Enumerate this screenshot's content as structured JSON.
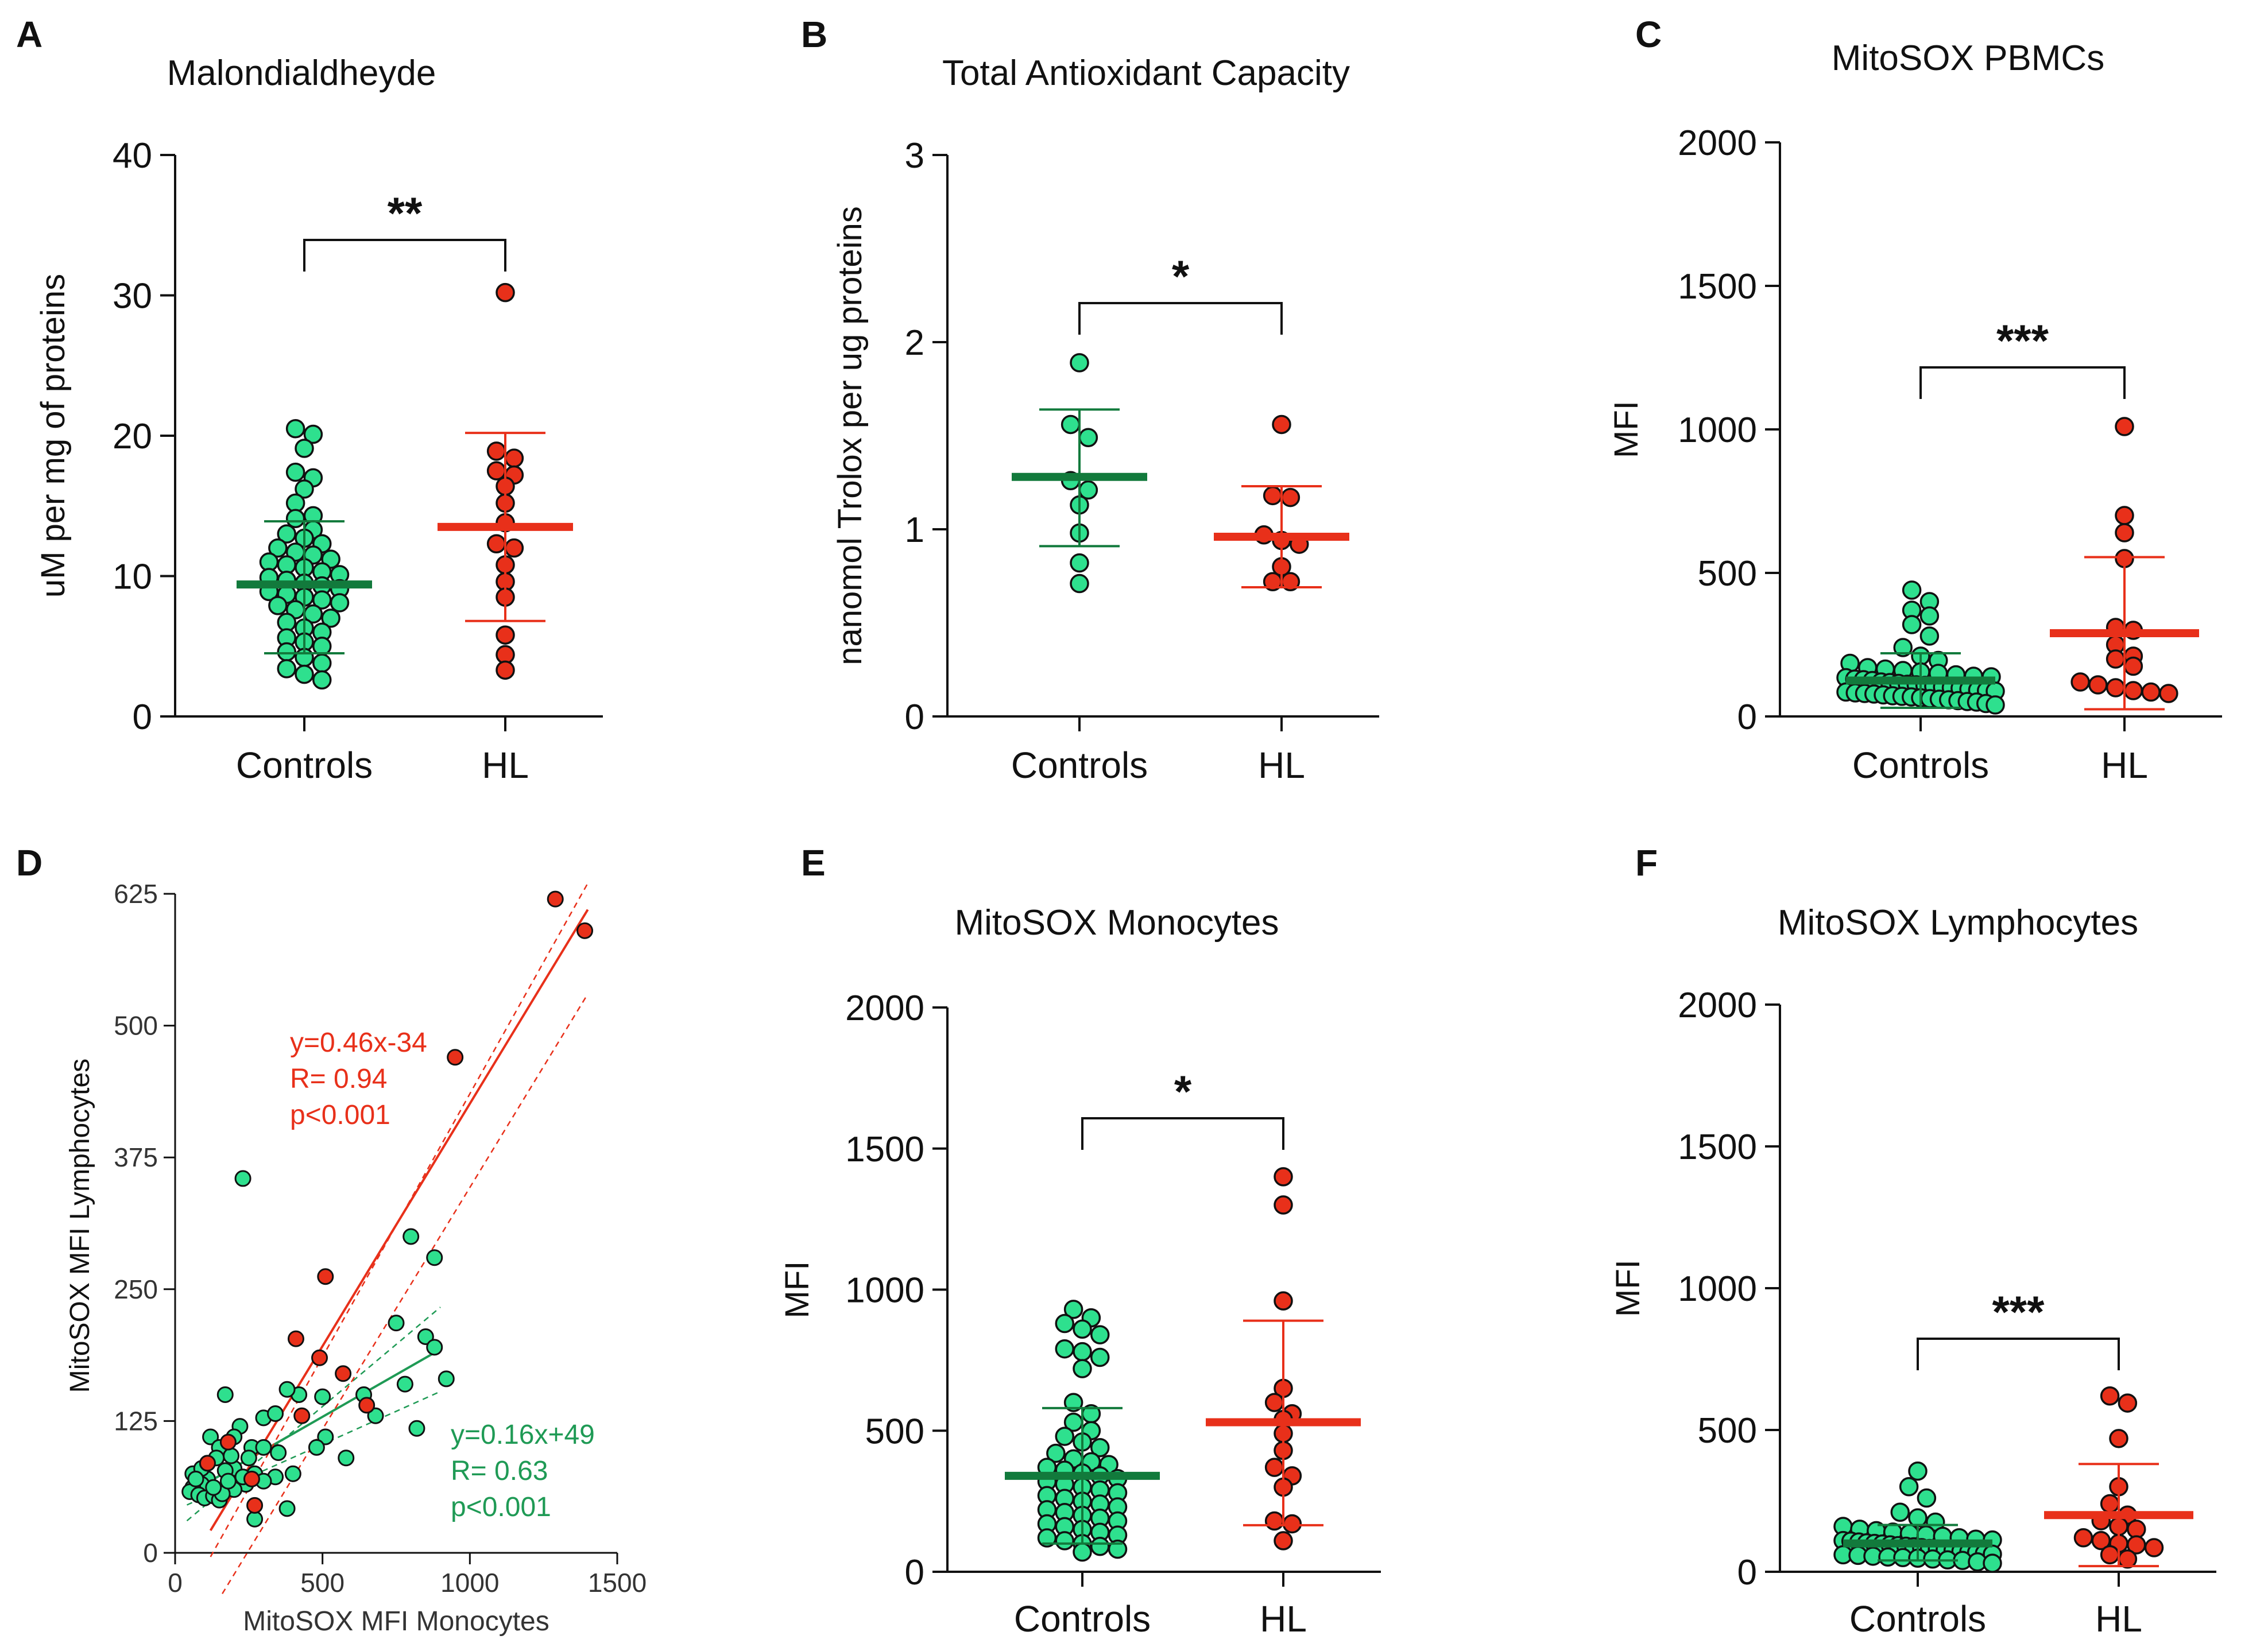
{
  "colors": {
    "controls_fill": "#2EE08E",
    "controls_line": "#127A3C",
    "hl_fill": "#E8301A",
    "hl_line": "#E8301A",
    "axis": "#111111",
    "green_text": "#1F9A55",
    "red_text": "#E8301A"
  },
  "chart_data": [
    {
      "panel": "A",
      "type": "scatter",
      "title": "Malondialdheyde",
      "xlabel": "",
      "ylabel": "uM per mg of proteins",
      "ylim": [
        0,
        40
      ],
      "yticks": [
        0,
        10,
        20,
        30,
        40
      ],
      "categories": [
        "Controls",
        "HL"
      ],
      "significance": "**",
      "series": [
        {
          "name": "Controls",
          "mean": 9.4,
          "sd_low": 4.5,
          "sd_high": 13.9,
          "values": [
            20.5,
            20.1,
            19.1,
            17.4,
            17.0,
            16.2,
            15.2,
            14.3,
            14.1,
            13.3,
            13.0,
            12.7,
            12.3,
            12.0,
            11.7,
            11.5,
            11.2,
            11.0,
            10.8,
            10.6,
            10.3,
            10.1,
            9.9,
            9.7,
            9.5,
            9.3,
            9.1,
            8.9,
            8.7,
            8.5,
            8.3,
            8.1,
            7.9,
            7.6,
            7.3,
            7.0,
            6.7,
            6.3,
            6.0,
            5.6,
            5.3,
            5.0,
            4.6,
            4.2,
            3.8,
            3.4,
            3.0,
            2.6
          ]
        },
        {
          "name": "HL",
          "mean": 13.5,
          "sd_low": 6.8,
          "sd_high": 20.2,
          "values": [
            30.2,
            18.9,
            18.4,
            17.5,
            17.2,
            16.4,
            15.2,
            13.8,
            12.3,
            12.0,
            10.8,
            9.6,
            8.5,
            5.8,
            4.4,
            3.3
          ]
        }
      ]
    },
    {
      "panel": "B",
      "type": "scatter",
      "title": "Total Antioxidant Capacity",
      "xlabel": "",
      "ylabel": "nanomol Trolox per ug proteins",
      "ylim": [
        0,
        3
      ],
      "yticks": [
        0,
        1,
        2,
        3
      ],
      "categories": [
        "Controls",
        "HL"
      ],
      "significance": "*",
      "series": [
        {
          "name": "Controls",
          "mean": 1.28,
          "sd_low": 0.91,
          "sd_high": 1.64,
          "values": [
            1.89,
            1.56,
            1.49,
            1.26,
            1.21,
            1.13,
            0.98,
            0.82,
            0.71
          ]
        },
        {
          "name": "HL",
          "mean": 0.96,
          "sd_low": 0.69,
          "sd_high": 1.23,
          "values": [
            1.56,
            1.18,
            1.17,
            0.97,
            0.94,
            0.92,
            0.8,
            0.72,
            0.72
          ]
        }
      ]
    },
    {
      "panel": "C",
      "type": "scatter",
      "title": "MitoSOX PBMCs",
      "xlabel": "",
      "ylabel": "MFI",
      "ylim": [
        0,
        2000
      ],
      "yticks": [
        0,
        500,
        1000,
        1500,
        2000
      ],
      "categories": [
        "Controls",
        "HL"
      ],
      "significance": "***",
      "series": [
        {
          "name": "Controls",
          "mean": 125,
          "sd_low": 30,
          "sd_high": 220,
          "values": [
            440,
            400,
            370,
            350,
            320,
            280,
            240,
            210,
            195,
            185,
            170,
            165,
            160,
            155,
            150,
            145,
            140,
            138,
            135,
            130,
            128,
            125,
            120,
            118,
            115,
            112,
            110,
            108,
            105,
            102,
            100,
            98,
            95,
            92,
            90,
            88,
            85,
            82,
            80,
            78,
            75,
            72,
            70,
            68,
            65,
            62,
            60,
            58,
            55,
            52,
            50,
            45,
            40
          ]
        },
        {
          "name": "HL",
          "mean": 290,
          "sd_low": 25,
          "sd_high": 555,
          "values": [
            1010,
            700,
            640,
            550,
            310,
            300,
            250,
            210,
            200,
            175,
            120,
            110,
            100,
            90,
            85,
            80
          ]
        }
      ]
    },
    {
      "panel": "D",
      "type": "scatter",
      "title": "",
      "xlabel": "MitoSOX MFI Monocytes",
      "ylabel": "MitoSOX MFI Lymphocytes",
      "xlim": [
        0,
        1500
      ],
      "ylim": [
        0,
        625
      ],
      "xticks": [
        0,
        500,
        1000,
        1500
      ],
      "yticks": [
        0,
        125,
        250,
        375,
        500,
        625
      ],
      "series": [
        {
          "name": "Controls",
          "fit_label": "y=0.16x+49",
          "r_label": "R= 0.63",
          "p_label": "p<0.001",
          "fit": {
            "slope": 0.16,
            "intercept": 49,
            "x_range": [
              40,
              900
            ]
          },
          "points": [
            [
              230,
              355
            ],
            [
              800,
              300
            ],
            [
              880,
              280
            ],
            [
              750,
              218
            ],
            [
              850,
              205
            ],
            [
              880,
              195
            ],
            [
              640,
              150
            ],
            [
              420,
              150
            ],
            [
              170,
              150
            ],
            [
              920,
              165
            ],
            [
              780,
              160
            ],
            [
              500,
              148
            ],
            [
              380,
              155
            ],
            [
              680,
              130
            ],
            [
              300,
              128
            ],
            [
              340,
              132
            ],
            [
              220,
              120
            ],
            [
              510,
              110
            ],
            [
              480,
              100
            ],
            [
              820,
              118
            ],
            [
              260,
              100
            ],
            [
              200,
              110
            ],
            [
              120,
              110
            ],
            [
              150,
              100
            ],
            [
              300,
              100
            ],
            [
              400,
              75
            ],
            [
              340,
              72
            ],
            [
              200,
              80
            ],
            [
              170,
              78
            ],
            [
              110,
              70
            ],
            [
              90,
              65
            ],
            [
              60,
              62
            ],
            [
              50,
              58
            ],
            [
              80,
              55
            ],
            [
              100,
              52
            ],
            [
              130,
              54
            ],
            [
              150,
              50
            ],
            [
              60,
              75
            ],
            [
              90,
              80
            ],
            [
              110,
              85
            ],
            [
              140,
              90
            ],
            [
              190,
              92
            ],
            [
              250,
              90
            ],
            [
              350,
              95
            ],
            [
              580,
              90
            ],
            [
              270,
              75
            ],
            [
              300,
              68
            ],
            [
              240,
              65
            ],
            [
              200,
              60
            ],
            [
              160,
              56
            ],
            [
              380,
              42
            ],
            [
              270,
              32
            ],
            [
              130,
              62
            ],
            [
              70,
              70
            ],
            [
              180,
              68
            ],
            [
              230,
              72
            ]
          ]
        },
        {
          "name": "HL",
          "fit_label": "y=0.46x-34",
          "r_label": "R= 0.94",
          "p_label": "p<0.001",
          "fit": {
            "slope": 0.46,
            "intercept": -34,
            "x_range": [
              120,
              1400
            ]
          },
          "points": [
            [
              1290,
              620
            ],
            [
              1390,
              590
            ],
            [
              950,
              470
            ],
            [
              510,
              262
            ],
            [
              410,
              203
            ],
            [
              490,
              185
            ],
            [
              650,
              140
            ],
            [
              570,
              170
            ],
            [
              430,
              130
            ],
            [
              180,
              105
            ],
            [
              110,
              85
            ],
            [
              270,
              45
            ],
            [
              260,
              70
            ]
          ]
        }
      ]
    },
    {
      "panel": "E",
      "type": "scatter",
      "title": "MitoSOX Monocytes",
      "xlabel": "",
      "ylabel": "MFI",
      "ylim": [
        0,
        2000
      ],
      "yticks": [
        0,
        500,
        1000,
        1500,
        2000
      ],
      "categories": [
        "Controls",
        "HL"
      ],
      "significance": "*",
      "series": [
        {
          "name": "Controls",
          "mean": 340,
          "sd_low": 100,
          "sd_high": 580,
          "values": [
            930,
            900,
            880,
            860,
            840,
            790,
            780,
            760,
            720,
            600,
            560,
            530,
            500,
            480,
            460,
            440,
            420,
            400,
            390,
            380,
            370,
            360,
            350,
            340,
            330,
            320,
            310,
            300,
            290,
            280,
            270,
            260,
            250,
            240,
            230,
            220,
            210,
            200,
            190,
            180,
            170,
            160,
            150,
            140,
            130,
            120,
            110,
            100,
            90,
            80,
            70
          ]
        },
        {
          "name": "HL",
          "mean": 530,
          "sd_low": 165,
          "sd_high": 890,
          "values": [
            1400,
            1300,
            960,
            650,
            600,
            560,
            540,
            490,
            430,
            370,
            340,
            300,
            180,
            170,
            110
          ]
        }
      ]
    },
    {
      "panel": "F",
      "type": "scatter",
      "title": "MitoSOX Lymphocytes",
      "xlabel": "",
      "ylabel": "MFI",
      "ylim": [
        0,
        2000
      ],
      "yticks": [
        0,
        500,
        1000,
        1500,
        2000
      ],
      "categories": [
        "Controls",
        "HL"
      ],
      "significance": "***",
      "series": [
        {
          "name": "Controls",
          "mean": 100,
          "sd_low": 40,
          "sd_high": 165,
          "values": [
            355,
            300,
            260,
            210,
            190,
            175,
            160,
            150,
            145,
            140,
            135,
            130,
            125,
            120,
            115,
            112,
            110,
            108,
            105,
            102,
            100,
            98,
            95,
            92,
            90,
            88,
            85,
            82,
            80,
            78,
            75,
            72,
            70,
            68,
            65,
            62,
            60,
            58,
            55,
            52,
            50,
            48,
            45,
            42,
            40,
            35,
            30
          ]
        },
        {
          "name": "HL",
          "mean": 200,
          "sd_low": 20,
          "sd_high": 380,
          "values": [
            620,
            595,
            470,
            300,
            240,
            200,
            180,
            160,
            150,
            120,
            110,
            100,
            95,
            85,
            60,
            45
          ]
        }
      ]
    }
  ]
}
